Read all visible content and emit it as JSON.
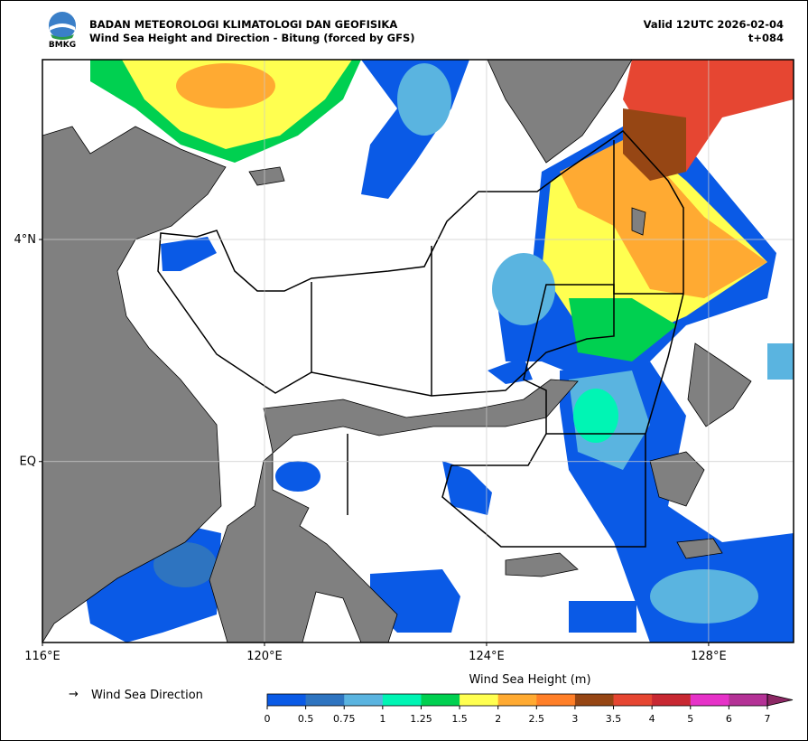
{
  "header": {
    "agency": "BADAN METEOROLOGI KLIMATOLOGI DAN GEOFISIKA",
    "subtitle": "Wind Sea Height and Direction - Bitung (forced by GFS)",
    "valid": "Valid 12UTC 2026-02-04",
    "step": "t+084",
    "logo_text": "BMKG"
  },
  "map": {
    "xlim": [
      116,
      129.53
    ],
    "ylim": [
      -3.26,
      7.24
    ],
    "xticks": [
      {
        "value": 116,
        "label": "116°E"
      },
      {
        "value": 120,
        "label": "120°E"
      },
      {
        "value": 124,
        "label": "124°E"
      },
      {
        "value": 128,
        "label": "128°E"
      }
    ],
    "yticks": [
      {
        "value": 4,
        "label": "4°N"
      },
      {
        "value": 0,
        "label": "EQ"
      }
    ],
    "grid": true
  },
  "legend": {
    "arrow_symbol": "→",
    "arrow_label": "Wind Sea Direction"
  },
  "colorbar": {
    "title": "Wind Sea Height (m)",
    "ticks": [
      0,
      0.5,
      0.75,
      1,
      1.25,
      1.5,
      2,
      2.5,
      3,
      3.5,
      4,
      5,
      6,
      7
    ],
    "colors": [
      "#0a5ae6",
      "#2e74c0",
      "#5ab4e0",
      "#00f5b4",
      "#00d050",
      "#ffff50",
      "#ffaa32",
      "#ff7f28",
      "#964614",
      "#e64632",
      "#c82832",
      "#e632c8",
      "#b43296",
      "#8c2864"
    ]
  }
}
